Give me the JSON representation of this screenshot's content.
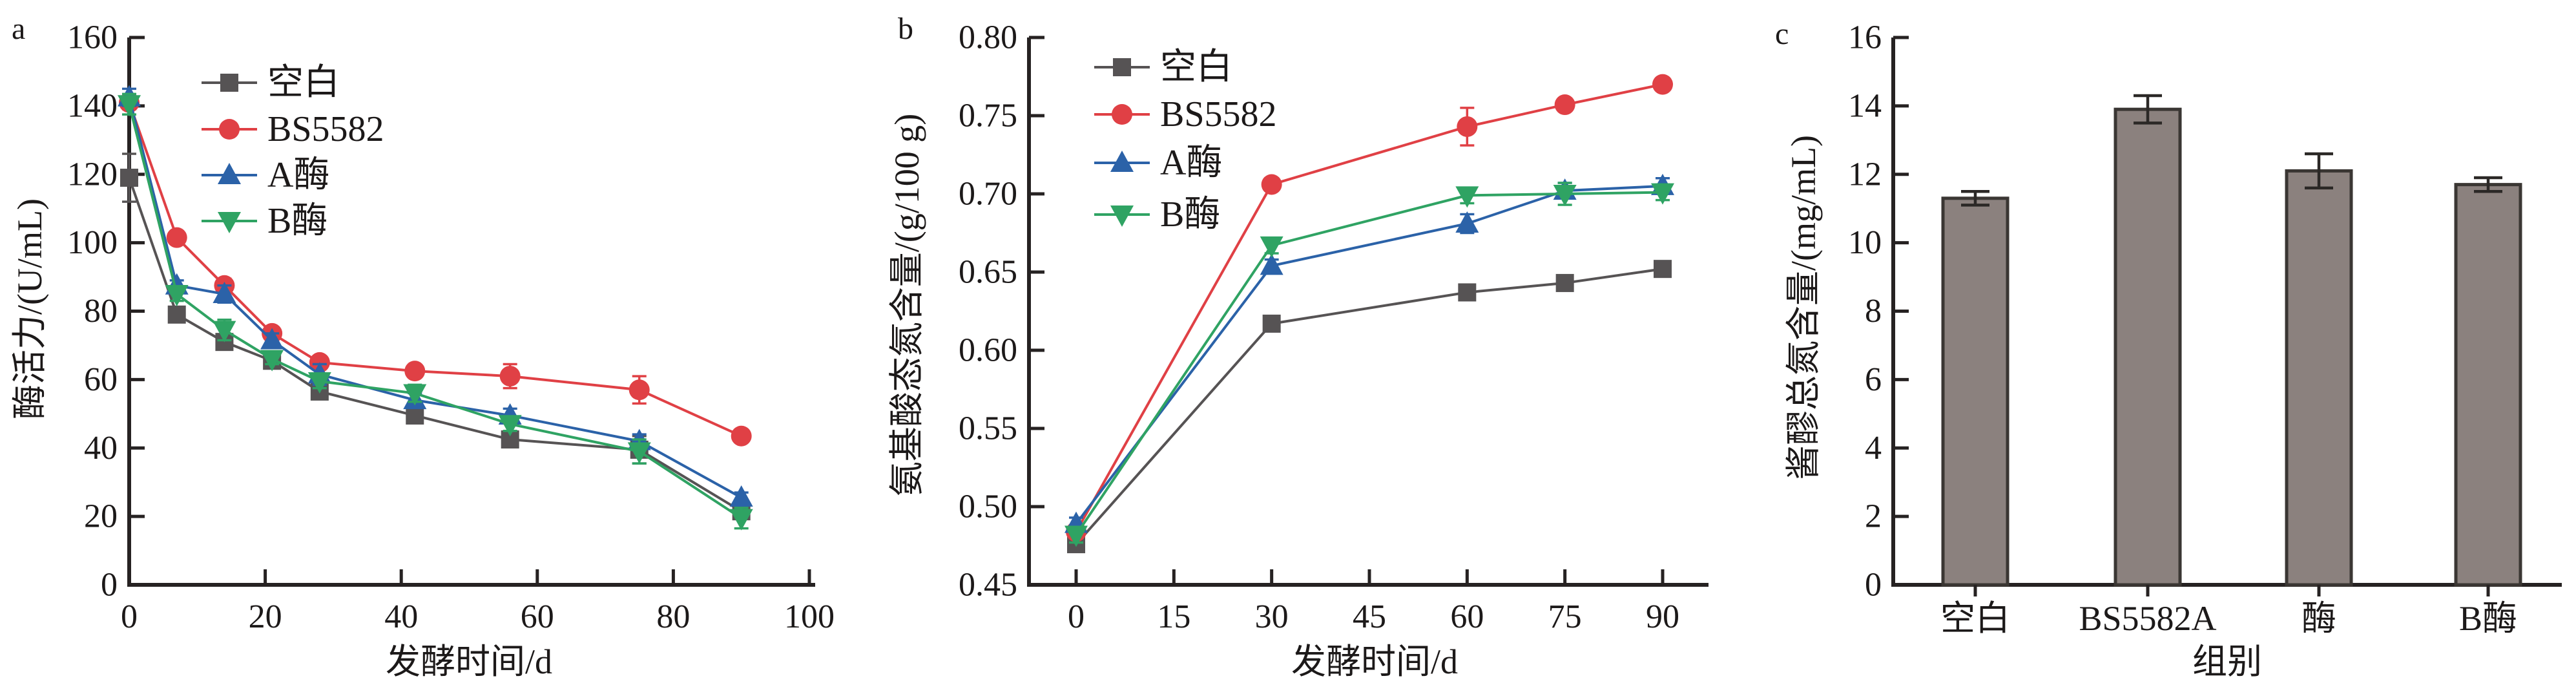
{
  "figure": {
    "background": "#ffffff",
    "axis_color": "#262222",
    "text_color": "#1c1919"
  },
  "chart_data": [
    {
      "label": "a",
      "type": "line",
      "xlabel": "发酵时间/d",
      "ylabel": "酶活力/(U/mL)",
      "xlim": [
        0,
        100
      ],
      "ylim": [
        0,
        160
      ],
      "x_ticks": [
        0,
        20,
        40,
        60,
        80,
        100
      ],
      "x_tick_labels": [
        "0",
        "20",
        "40",
        "60",
        "80",
        "100"
      ],
      "y_ticks": [
        0,
        20,
        40,
        60,
        80,
        100,
        120,
        140,
        160
      ],
      "y_tick_labels": [
        "0",
        "20",
        "40",
        "60",
        "80",
        "100",
        "120",
        "140",
        "160"
      ],
      "grid": false,
      "legend_position": "upper-left-inside",
      "x": [
        0,
        7,
        14,
        21,
        28,
        42,
        56,
        75,
        90
      ],
      "series": [
        {
          "name": "空白",
          "marker": "square",
          "color": "#565354",
          "values": [
            119,
            79,
            71,
            65.5,
            56.5,
            49.5,
            42.5,
            39.5,
            21.5
          ],
          "errors": [
            7,
            2,
            2,
            1.5,
            1.5,
            1.5,
            1.5,
            4,
            2
          ]
        },
        {
          "name": "BS5582",
          "marker": "circle",
          "color": "#e04045",
          "values": [
            141,
            101.5,
            87.5,
            73.5,
            65,
            62.5,
            61,
            57,
            43.5
          ],
          "errors": [
            2,
            1.5,
            2,
            1.5,
            1.5,
            1.5,
            3.5,
            4,
            1.5
          ]
        },
        {
          "name": "A酶",
          "marker": "triangle-up",
          "color": "#2b62a8",
          "values": [
            142.5,
            87.5,
            85,
            71.5,
            61.5,
            54,
            49.5,
            42,
            25.5
          ],
          "errors": [
            2.5,
            1.5,
            2.5,
            2,
            3,
            2,
            2,
            2,
            1.5
          ]
        },
        {
          "name": "B酶",
          "marker": "triangle-down",
          "color": "#2fa363",
          "values": [
            140.5,
            85,
            74.5,
            66,
            59.5,
            56,
            47,
            39,
            19.5
          ],
          "errors": [
            3,
            2,
            3,
            1.5,
            2,
            2.5,
            2,
            3.5,
            3
          ]
        }
      ]
    },
    {
      "label": "b",
      "type": "line",
      "xlabel": "发酵时间/d",
      "ylabel": "氨基酸态氮含量/(g/100 g)",
      "xlim": [
        0,
        90
      ],
      "ylim": [
        0.45,
        0.8
      ],
      "x_ticks": [
        0,
        15,
        30,
        45,
        60,
        75,
        90
      ],
      "x_tick_labels": [
        "0",
        "15",
        "30",
        "45",
        "60",
        "75",
        "90"
      ],
      "y_ticks": [
        0.45,
        0.5,
        0.55,
        0.6,
        0.65,
        0.7,
        0.75,
        0.8
      ],
      "y_tick_labels": [
        "0.45",
        "0.50",
        "0.55",
        "0.60",
        "0.65",
        "0.70",
        "0.75",
        "0.80"
      ],
      "grid": false,
      "legend_position": "upper-left-inside",
      "x": [
        0,
        30,
        60,
        75,
        90
      ],
      "series": [
        {
          "name": "空白",
          "marker": "square",
          "color": "#565354",
          "values": [
            0.476,
            0.617,
            0.637,
            0.643,
            0.652
          ],
          "errors": [
            0.004,
            0.004,
            0.004,
            0.004,
            0.004
          ]
        },
        {
          "name": "BS5582",
          "marker": "circle",
          "color": "#e04045",
          "values": [
            0.484,
            0.706,
            0.743,
            0.757,
            0.77
          ],
          "errors": [
            0.003,
            0.004,
            0.012,
            0.004,
            0.004
          ]
        },
        {
          "name": "A酶",
          "marker": "triangle-up",
          "color": "#2b62a8",
          "values": [
            0.489,
            0.654,
            0.681,
            0.702,
            0.705
          ],
          "errors": [
            0.004,
            0.004,
            0.006,
            0.005,
            0.005
          ]
        },
        {
          "name": "B酶",
          "marker": "triangle-down",
          "color": "#2fa363",
          "values": [
            0.482,
            0.667,
            0.699,
            0.7,
            0.701
          ],
          "errors": [
            0.005,
            0.005,
            0.005,
            0.007,
            0.005
          ]
        }
      ]
    },
    {
      "label": "c",
      "type": "bar",
      "xlabel": "组别",
      "ylabel": "酱醪总氮含量/(mg/mL)",
      "ylim": [
        0,
        16
      ],
      "y_ticks": [
        0,
        2,
        4,
        6,
        8,
        10,
        12,
        14,
        16
      ],
      "y_tick_labels": [
        "0",
        "2",
        "4",
        "6",
        "8",
        "10",
        "12",
        "14",
        "16"
      ],
      "grid": false,
      "categories": [
        "空白",
        "BS5582A",
        "酶",
        "B酶"
      ],
      "values": [
        11.3,
        13.9,
        12.1,
        11.7
      ],
      "errors": [
        0.2,
        0.4,
        0.5,
        0.2
      ],
      "bar_color": "#8b817e",
      "bar_border": "#3a3633",
      "error_color": "#2b2826"
    }
  ]
}
